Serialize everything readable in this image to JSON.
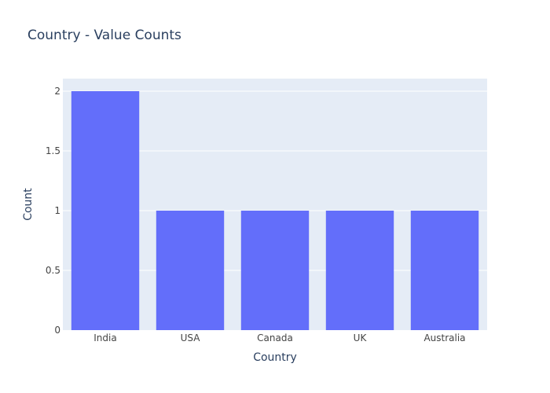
{
  "chart_data": {
    "type": "bar",
    "title": "Country - Value Counts",
    "xlabel": "Country",
    "ylabel": "Count",
    "categories": [
      "India",
      "USA",
      "Canada",
      "UK",
      "Australia"
    ],
    "values": [
      2,
      1,
      1,
      1,
      1
    ],
    "ylim": [
      0,
      2
    ],
    "yticks": [
      0,
      0.5,
      1,
      1.5,
      2
    ],
    "ytick_labels": [
      "0",
      "0.5",
      "1",
      "1.5",
      "2"
    ],
    "grid": true,
    "legend": "none",
    "colors": {
      "bar": "#636efa",
      "plot_background": "#e5ecf6",
      "gridline": "#ffffff",
      "text": "#2a3f5f",
      "tick_text": "#444444"
    }
  }
}
